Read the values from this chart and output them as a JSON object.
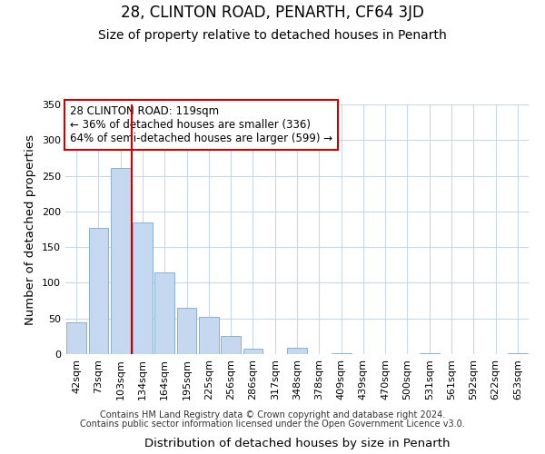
{
  "title": "28, CLINTON ROAD, PENARTH, CF64 3JD",
  "subtitle": "Size of property relative to detached houses in Penarth",
  "xlabel": "Distribution of detached houses by size in Penarth",
  "ylabel": "Number of detached properties",
  "bar_labels": [
    "42sqm",
    "73sqm",
    "103sqm",
    "134sqm",
    "164sqm",
    "195sqm",
    "225sqm",
    "256sqm",
    "286sqm",
    "317sqm",
    "348sqm",
    "378sqm",
    "409sqm",
    "439sqm",
    "470sqm",
    "500sqm",
    "531sqm",
    "561sqm",
    "592sqm",
    "622sqm",
    "653sqm"
  ],
  "bar_values": [
    44,
    177,
    261,
    184,
    114,
    65,
    52,
    25,
    8,
    0,
    9,
    0,
    1,
    0,
    0,
    0,
    1,
    0,
    0,
    0,
    1
  ],
  "bar_color": "#c5d8f0",
  "bar_edge_color": "#8ab0d4",
  "vline_x": 2.5,
  "vline_color": "#cc0000",
  "ylim": [
    0,
    350
  ],
  "yticks": [
    0,
    50,
    100,
    150,
    200,
    250,
    300,
    350
  ],
  "annotation_title": "28 CLINTON ROAD: 119sqm",
  "annotation_line1": "← 36% of detached houses are smaller (336)",
  "annotation_line2": "64% of semi-detached houses are larger (599) →",
  "annotation_box_color": "#ffffff",
  "annotation_box_edge": "#cc0000",
  "footnote1": "Contains HM Land Registry data © Crown copyright and database right 2024.",
  "footnote2": "Contains public sector information licensed under the Open Government Licence v3.0.",
  "bg_color": "#ffffff",
  "grid_color": "#c8d8e8",
  "title_fontsize": 12,
  "subtitle_fontsize": 10,
  "axis_label_fontsize": 9.5,
  "tick_fontsize": 8,
  "annotation_fontsize": 8.5,
  "footnote_fontsize": 7
}
